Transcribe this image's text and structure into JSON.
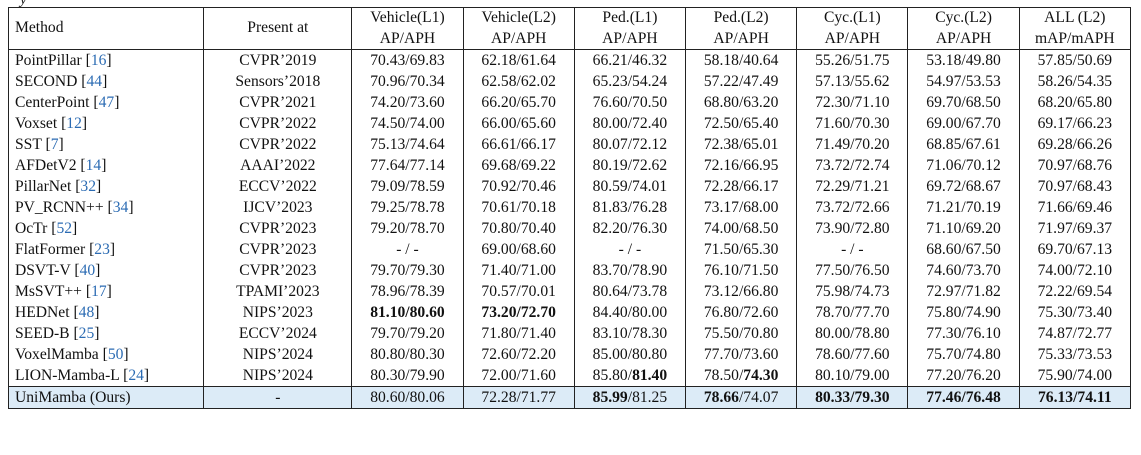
{
  "caption_tail": "y",
  "header": {
    "method": "Method",
    "present_at": "Present at",
    "columns": [
      {
        "top": "Vehicle(L1)",
        "bottom": "AP/APH"
      },
      {
        "top": "Vehicle(L2)",
        "bottom": "AP/APH"
      },
      {
        "top": "Ped.(L1)",
        "bottom": "AP/APH"
      },
      {
        "top": "Ped.(L2)",
        "bottom": "AP/APH"
      },
      {
        "top": "Cyc.(L1)",
        "bottom": "AP/APH"
      },
      {
        "top": "Cyc.(L2)",
        "bottom": "AP/APH"
      },
      {
        "top": "ALL (L2)",
        "bottom": "mAP/mAPH"
      }
    ]
  },
  "rows": [
    {
      "name": "PointPillar",
      "ref": "16",
      "venue": "CVPR’2019",
      "vals": [
        "70.43/69.83",
        "62.18/61.64",
        "66.21/46.32",
        "58.18/40.64",
        "55.26/51.75",
        "53.18/49.80",
        "57.85/50.69"
      ]
    },
    {
      "name": "SECOND",
      "ref": "44",
      "venue": "Sensors’2018",
      "vals": [
        "70.96/70.34",
        "62.58/62.02",
        "65.23/54.24",
        "57.22/47.49",
        "57.13/55.62",
        "54.97/53.53",
        "58.26/54.35"
      ]
    },
    {
      "name": "CenterPoint",
      "ref": "47",
      "venue": "CVPR’2021",
      "vals": [
        "74.20/73.60",
        "66.20/65.70",
        "76.60/70.50",
        "68.80/63.20",
        "72.30/71.10",
        "69.70/68.50",
        "68.20/65.80"
      ]
    },
    {
      "name": "Voxset",
      "ref": "12",
      "venue": "CVPR’2022",
      "vals": [
        "74.50/74.00",
        "66.00/65.60",
        "80.00/72.40",
        "72.50/65.40",
        "71.60/70.30",
        "69.00/67.70",
        "69.17/66.23"
      ]
    },
    {
      "name": "SST",
      "ref": "7",
      "venue": "CVPR’2022",
      "vals": [
        "75.13/74.64",
        "66.61/66.17",
        "80.07/72.12",
        "72.38/65.01",
        "71.49/70.20",
        "68.85/67.61",
        "69.28/66.26"
      ]
    },
    {
      "name": "AFDetV2",
      "ref": "14",
      "venue": "AAAI’2022",
      "vals": [
        "77.64/77.14",
        "69.68/69.22",
        "80.19/72.62",
        "72.16/66.95",
        "73.72/72.74",
        "71.06/70.12",
        "70.97/68.76"
      ]
    },
    {
      "name": "PillarNet",
      "ref": "32",
      "venue": "ECCV’2022",
      "vals": [
        "79.09/78.59",
        "70.92/70.46",
        "80.59/74.01",
        "72.28/66.17",
        "72.29/71.21",
        "69.72/68.67",
        "70.97/68.43"
      ]
    },
    {
      "name": "PV_RCNN++",
      "ref": "34",
      "venue": "IJCV’2023",
      "vals": [
        "79.25/78.78",
        "70.61/70.18",
        "81.83/76.28",
        "73.17/68.00",
        "73.72/72.66",
        "71.21/70.19",
        "71.66/69.46"
      ]
    },
    {
      "name": "OcTr",
      "ref": "52",
      "venue": "CVPR’2023",
      "vals": [
        "79.20/78.70",
        "70.80/70.40",
        "82.20/76.30",
        "74.00/68.50",
        "73.90/72.80",
        "71.10/69.20",
        "71.97/69.37"
      ]
    },
    {
      "name": "FlatFormer",
      "ref": "23",
      "venue": "CVPR’2023",
      "vals": [
        "- / -",
        "69.00/68.60",
        "- / -",
        "71.50/65.30",
        "- / -",
        "68.60/67.50",
        "69.70/67.13"
      ]
    },
    {
      "name": "DSVT-V",
      "ref": "40",
      "venue": "CVPR’2023",
      "vals": [
        "79.70/79.30",
        "71.40/71.00",
        "83.70/78.90",
        "76.10/71.50",
        "77.50/76.50",
        "74.60/73.70",
        "74.00/72.10"
      ]
    },
    {
      "name": "MsSVT++",
      "ref": "17",
      "venue": "TPAMI’2023",
      "vals": [
        "78.96/78.39",
        "70.57/70.01",
        "80.64/73.78",
        "73.12/66.80",
        "75.98/74.73",
        "72.97/71.82",
        "72.22/69.54"
      ]
    },
    {
      "name": "HEDNet",
      "ref": "48",
      "venue": "NIPS’2023",
      "vals": [
        "81.10/80.60",
        "73.20/72.70",
        "84.40/80.00",
        "76.80/72.60",
        "78.70/77.70",
        "75.80/74.90",
        "75.30/73.40"
      ]
    },
    {
      "name": "SEED-B",
      "ref": "25",
      "venue": "ECCV’2024",
      "vals": [
        "79.70/79.20",
        "71.80/71.40",
        "83.10/78.30",
        "75.50/70.80",
        "80.00/78.80",
        "77.30/76.10",
        "74.87/72.77"
      ]
    },
    {
      "name": "VoxelMamba",
      "ref": "50",
      "venue": "NIPS’2024",
      "vals": [
        "80.80/80.30",
        "72.60/72.20",
        "85.00/80.80",
        "77.70/73.60",
        "78.60/77.60",
        "75.70/74.80",
        "75.33/73.53"
      ]
    },
    {
      "name": "LION-Mamba-L",
      "ref": "24",
      "venue": "NIPS’2024",
      "vals": [
        "80.30/79.90",
        "72.00/71.60",
        "85.80/81.40",
        "78.50/74.30",
        "80.10/79.00",
        "77.20/76.20",
        "75.90/74.00"
      ]
    }
  ],
  "ours": {
    "name": "UniMamba (Ours)",
    "venue": "-",
    "vals": [
      "80.60/80.06",
      "72.28/71.77",
      "85.99/81.25",
      "78.66/74.07",
      "80.33/79.30",
      "77.46/76.48",
      "76.13/74.11"
    ]
  },
  "bold_cells": {
    "HEDNet": {
      "0": "all",
      "1": "all"
    },
    "LION-Mamba-L": {
      "2": "aph",
      "3": "aph"
    },
    "UniMamba (Ours)": {
      "2": "ap",
      "3": "ap",
      "4": "all",
      "5": "all",
      "6": "all"
    }
  }
}
